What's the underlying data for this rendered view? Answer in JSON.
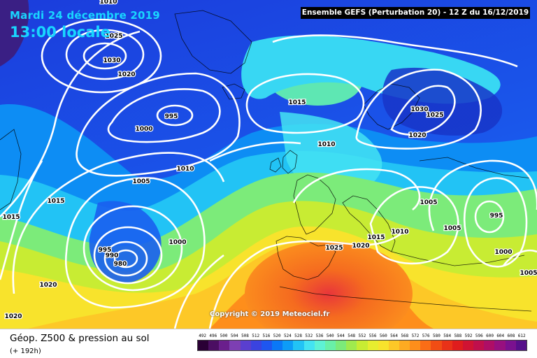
{
  "header": {
    "date": "Mardi 24 décembre 2019",
    "time": "13:00 locale",
    "run_info": "Ensemble GEFS  (Perturbation 20)  -  12 Z du 16/12/2019"
  },
  "map": {
    "copyright": "Copyright © 2019 Meteociel.fr",
    "isobar_labels": [
      "1010",
      "1025",
      "1030",
      "1020",
      "995",
      "1000",
      "1015",
      "1030",
      "1025",
      "1020",
      "1010",
      "1010",
      "1005",
      "1015",
      "1015",
      "1000",
      "995",
      "990",
      "980",
      "1025",
      "1020",
      "1015",
      "1005",
      "1010",
      "1005",
      "995",
      "1000",
      "1020",
      "1020",
      "1005"
    ]
  },
  "footer": {
    "title": "Géop. Z500 & pression au sol",
    "subtitle": "(+ 192h)"
  },
  "legend": {
    "labels": [
      "492",
      "496",
      "500",
      "504",
      "508",
      "512",
      "516",
      "520",
      "524",
      "528",
      "532",
      "536",
      "540",
      "544",
      "548",
      "552",
      "556",
      "560",
      "564",
      "568",
      "572",
      "576",
      "580",
      "584",
      "588",
      "592",
      "596",
      "600",
      "604",
      "608",
      "612"
    ],
    "colors": [
      "#2a0035",
      "#4b0e62",
      "#6a1f8c",
      "#7d3fb3",
      "#5a3fcf",
      "#3a43e0",
      "#1e56f0",
      "#0a78f7",
      "#0d9cf7",
      "#22c3f5",
      "#44e3f2",
      "#5ef2d5",
      "#69f0a8",
      "#7ceb7a",
      "#a0ea4e",
      "#c8ec33",
      "#e7ed2f",
      "#f8e32c",
      "#fdc827",
      "#feab21",
      "#fe8e1b",
      "#fb6d16",
      "#f24d14",
      "#e93218",
      "#df1d1d",
      "#d01333",
      "#c00f4c",
      "#ae0e66",
      "#97107f",
      "#7a118f",
      "#560f8a"
    ]
  }
}
